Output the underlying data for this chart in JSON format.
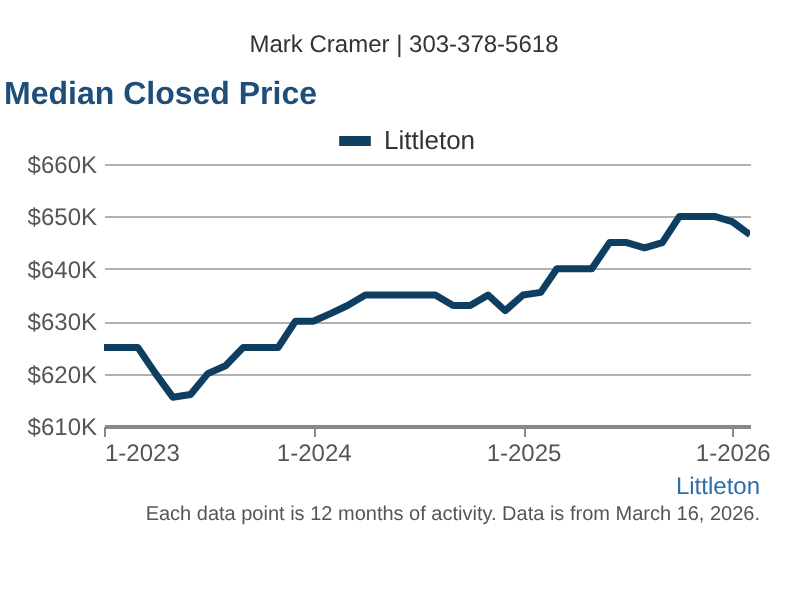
{
  "chart_data": {
    "type": "line",
    "title": "Median Closed Price",
    "x": [
      "2023-01",
      "2023-02",
      "2023-03",
      "2023-04",
      "2023-05",
      "2023-06",
      "2023-07",
      "2023-08",
      "2023-09",
      "2023-10",
      "2023-11",
      "2023-12",
      "2024-01",
      "2024-02",
      "2024-03",
      "2024-04",
      "2024-05",
      "2024-06",
      "2024-07",
      "2024-08",
      "2024-09",
      "2024-10",
      "2024-11",
      "2024-12",
      "2025-01",
      "2025-02",
      "2025-03",
      "2025-04",
      "2025-05",
      "2025-06",
      "2025-07",
      "2025-08",
      "2025-09",
      "2025-10",
      "2025-11",
      "2025-12",
      "2026-01",
      "2026-02"
    ],
    "series": [
      {
        "name": "Littleton",
        "color": "#0e3f60",
        "values": [
          625,
          625,
          625,
          620,
          615.5,
          616,
          620,
          621.5,
          625,
          625,
          625,
          630,
          630,
          631.5,
          633,
          635,
          635,
          635,
          635,
          635,
          633,
          633,
          635,
          632,
          635,
          635.5,
          640,
          640,
          640,
          645,
          645,
          644,
          645,
          650,
          650,
          650,
          649,
          646.5
        ]
      }
    ],
    "xlim": [
      "2023-01",
      "2026-02"
    ],
    "xticks": [
      {
        "value": "2023-01",
        "label": "1-2023"
      },
      {
        "value": "2024-01",
        "label": "1-2024"
      },
      {
        "value": "2025-01",
        "label": "1-2025"
      },
      {
        "value": "2026-01",
        "label": "1-2026"
      }
    ],
    "ylim": [
      610,
      660
    ],
    "yticks": [
      {
        "value": 610,
        "label": "$610K"
      },
      {
        "value": 620,
        "label": "$620K"
      },
      {
        "value": 630,
        "label": "$630K"
      },
      {
        "value": 640,
        "label": "$640K"
      },
      {
        "value": 650,
        "label": "$650K"
      },
      {
        "value": 660,
        "label": "$660K"
      }
    ],
    "grid": "y",
    "legend": "top",
    "marker": "none",
    "line_style": "solid",
    "annotations": [
      "Mark Cramer | 303-378-5618",
      "Littleton",
      "Each data point is 12 months of activity. Data is from March 16, 2026."
    ]
  }
}
